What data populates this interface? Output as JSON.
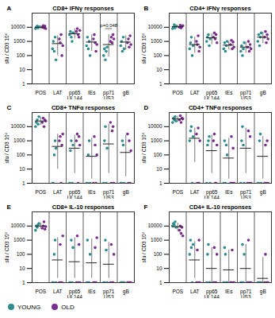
{
  "chart_data": [
    {
      "type": "scatter",
      "label": "A",
      "title": "CD8+ IFNγ responses",
      "y_label": "sfu / CD3 10⁶",
      "log": "y",
      "categories": [
        "POS",
        "LAT",
        "pp65\nUL144",
        "IEs",
        "pp71\nUS3",
        "gB"
      ],
      "ylim": [
        1,
        100000
      ],
      "yticks": [
        1,
        10,
        100,
        1000,
        10000
      ],
      "series": [
        {
          "name": "YOUNG",
          "color": "#2f8d8f",
          "values": [
            [
              8000,
              10000,
              12000,
              9000,
              11000
            ],
            [
              300,
              1000,
              200,
              2000,
              50
            ],
            [
              3000,
              5000,
              2000,
              1000,
              4000
            ],
            [
              500,
              2000,
              300,
              1000,
              100
            ],
            [
              100,
              300,
              50,
              200,
              400
            ],
            [
              500,
              1000,
              200,
              2000,
              300
            ]
          ]
        },
        {
          "name": "OLD",
          "color": "#7b2d8e",
          "values": [
            [
              10000,
              13000,
              9000,
              12000,
              8000
            ],
            [
              1500,
              800,
              3000,
              100,
              500
            ],
            [
              5000,
              8000,
              3000,
              2000,
              6000
            ],
            [
              1500,
              3000,
              800,
              200,
              600
            ],
            [
              1000,
              2000,
              800,
              3000,
              1500
            ],
            [
              800,
              1500,
              400,
              2500,
              600
            ]
          ]
        }
      ],
      "mean": [
        10000,
        700,
        3500,
        900,
        600,
        900
      ],
      "error": [
        [
          7000,
          13000
        ],
        [
          100,
          2500
        ],
        [
          1500,
          8000
        ],
        [
          200,
          3000
        ],
        [
          80,
          3000
        ],
        [
          250,
          2500
        ]
      ],
      "annotations": [
        {
          "text": "p=0.048",
          "category": "pp71\nUS3",
          "y": 8000
        }
      ]
    },
    {
      "type": "scatter",
      "label": "B",
      "title": "CD4+ IFNγ responses",
      "y_label": "sfu / CD3 10⁶",
      "log": "y",
      "categories": [
        "POS",
        "LAT",
        "pp65\nUL144",
        "IEs",
        "pp71\nUS3",
        "gB"
      ],
      "ylim": [
        1,
        100000
      ],
      "yticks": [
        1,
        10,
        100,
        1000,
        10000
      ],
      "series": [
        {
          "name": "YOUNG",
          "color": "#2f8d8f",
          "values": [
            [
              8000,
              10000,
              15000,
              9000,
              12000
            ],
            [
              300,
              800,
              2000,
              100,
              500
            ],
            [
              1000,
              2000,
              3000,
              500,
              1500
            ],
            [
              300,
              800,
              200,
              500,
              1000
            ],
            [
              200,
              500,
              100,
              300,
              800
            ],
            [
              1000,
              3000,
              500,
              2000,
              4000
            ]
          ]
        },
        {
          "name": "OLD",
          "color": "#7b2d8e",
          "values": [
            [
              10000,
              14000,
              9000,
              11000,
              13000
            ],
            [
              1000,
              600,
              2500,
              200,
              400
            ],
            [
              2000,
              4000,
              1500,
              3000,
              800
            ],
            [
              600,
              1200,
              300,
              900,
              400
            ],
            [
              400,
              1000,
              200,
              600,
              300
            ],
            [
              2000,
              5000,
              800,
              3000,
              1500
            ]
          ]
        }
      ],
      "mean": [
        11000,
        600,
        1800,
        550,
        400,
        2000
      ],
      "error": [
        [
          8000,
          14000
        ],
        [
          150,
          2000
        ],
        [
          600,
          3500
        ],
        [
          250,
          1000
        ],
        [
          150,
          900
        ],
        [
          700,
          4500
        ]
      ],
      "annotations": []
    },
    {
      "type": "scatter",
      "label": "C",
      "title": "CD8+ TNFα responses",
      "y_label": "sfu / CD3 10⁶",
      "log": "y",
      "categories": [
        "POS",
        "LAT",
        "pp65\nUL144",
        "IEs",
        "pp71\nUS3",
        "gB"
      ],
      "ylim": [
        1,
        100000
      ],
      "yticks": [
        1,
        10,
        100,
        1000,
        10000
      ],
      "series": [
        {
          "name": "YOUNG",
          "color": "#2f8d8f",
          "values": [
            [
              10000,
              20000,
              30000,
              15000,
              50000
            ],
            [
              1,
              1,
              100,
              1000,
              300
            ],
            [
              1,
              200,
              1000,
              1,
              500
            ],
            [
              1,
              1,
              100,
              1000,
              1
            ],
            [
              1,
              1000,
              10000,
              1,
              300
            ],
            [
              1,
              1,
              1000,
              500,
              1
            ]
          ]
        },
        {
          "name": "OLD",
          "color": "#7b2d8e",
          "values": [
            [
              20000,
              40000,
              10000,
              30000,
              25000
            ],
            [
              1000,
              2000,
              1,
              500,
              3000
            ],
            [
              1000,
              3000,
              1,
              2000,
              500
            ],
            [
              1,
              2000,
              500,
              1,
              100
            ],
            [
              20000,
              1,
              5000,
              10000,
              1
            ],
            [
              3000,
              1,
              1000,
              1,
              200
            ]
          ]
        }
      ],
      "mean": [
        25000,
        400,
        300,
        80,
        600,
        150
      ],
      "error": [
        [
          12000,
          45000
        ],
        [
          10,
          3000
        ],
        [
          5,
          2500
        ],
        [
          2,
          1500
        ],
        [
          5,
          15000
        ],
        [
          3,
          2500
        ]
      ],
      "annotations": []
    },
    {
      "type": "scatter",
      "label": "D",
      "title": "CD4+ TNFα responses",
      "y_label": "sfu / CD3 10⁶",
      "log": "y",
      "categories": [
        "POS",
        "LAT",
        "pp65\nUL144",
        "IEs",
        "pp71\nUS3",
        "gB"
      ],
      "ylim": [
        1,
        100000
      ],
      "yticks": [
        1,
        10,
        100,
        1000,
        10000
      ],
      "series": [
        {
          "name": "YOUNG",
          "color": "#2f8d8f",
          "values": [
            [
              20000,
              40000,
              30000,
              50000,
              25000
            ],
            [
              1000,
              5000,
              10000,
              1,
              2000
            ],
            [
              1,
              500,
              1000,
              2000,
              1
            ],
            [
              1,
              1000,
              1,
              500,
              100
            ],
            [
              1,
              1000,
              10000,
              500,
              1
            ],
            [
              1,
              1,
              1000,
              3000,
              1
            ]
          ]
        },
        {
          "name": "OLD",
          "color": "#7b2d8e",
          "values": [
            [
              30000,
              60000,
              20000,
              40000,
              35000
            ],
            [
              3000,
              1,
              8000,
              1,
              1000
            ],
            [
              1000,
              3000,
              1,
              1,
              500
            ],
            [
              1,
              2000,
              1,
              300,
              1
            ],
            [
              1,
              5000,
              1,
              2000,
              1
            ],
            [
              1,
              500,
              1,
              1000,
              1
            ]
          ]
        }
      ],
      "mean": [
        35000,
        1500,
        200,
        60,
        300,
        80
      ],
      "error": [
        [
          20000,
          55000
        ],
        [
          30,
          8000
        ],
        [
          5,
          2500
        ],
        [
          2,
          1500
        ],
        [
          5,
          8000
        ],
        [
          2,
          2000
        ]
      ],
      "annotations": []
    },
    {
      "type": "scatter",
      "label": "E",
      "title": "CD8+ IL-10 responses",
      "y_label": "sfu / CD3 10⁶",
      "log": "y",
      "categories": [
        "POS",
        "LAT",
        "pp65\nUL144",
        "IEs",
        "pp71\nUS3",
        "gB"
      ],
      "ylim": [
        1,
        100000
      ],
      "yticks": [
        1,
        10,
        100,
        1000,
        10000
      ],
      "series": [
        {
          "name": "YOUNG",
          "color": "#2f8d8f",
          "values": [
            [
              5000,
              10000,
              8000,
              12000,
              15000
            ],
            [
              1,
              1,
              100,
              1000,
              1
            ],
            [
              1,
              1,
              1000,
              1,
              300
            ],
            [
              1,
              1000,
              1,
              1,
              100
            ],
            [
              1,
              1,
              1000,
              200,
              1
            ],
            [
              1,
              1,
              1,
              1,
              1
            ]
          ]
        },
        {
          "name": "OLD",
          "color": "#7b2d8e",
          "values": [
            [
              7000,
              10000,
              20000,
              6000,
              9000
            ],
            [
              1,
              500,
              1,
              1,
              2000
            ],
            [
              1,
              2000,
              1,
              500,
              1
            ],
            [
              1,
              1,
              300,
              1,
              1500
            ],
            [
              1,
              500,
              1,
              1,
              100
            ],
            [
              1,
              1,
              1,
              1,
              1
            ]
          ]
        }
      ],
      "mean": [
        10000,
        40,
        30,
        25,
        20,
        1
      ],
      "error": [
        [
          6000,
          16000
        ],
        [
          2,
          1500
        ],
        [
          2,
          1500
        ],
        [
          2,
          1200
        ],
        [
          2,
          700
        ],
        [
          1,
          1
        ]
      ],
      "annotations": []
    },
    {
      "type": "scatter",
      "label": "F",
      "title": "CD4+ IL-10 responses",
      "y_label": "sfu / CD3 10⁶",
      "log": "y",
      "categories": [
        "POS",
        "LAT",
        "pp65\nUL144",
        "IEs",
        "pp71\nUS3",
        "gB"
      ],
      "ylim": [
        1,
        100000
      ],
      "yticks": [
        1,
        10,
        100,
        1000,
        10000
      ],
      "series": [
        {
          "name": "YOUNG",
          "color": "#2f8d8f",
          "values": [
            [
              10000,
              15000,
              12000,
              20000,
              8000
            ],
            [
              100,
              1000,
              300,
              1,
              500
            ],
            [
              1,
              100,
              500,
              1,
              1
            ],
            [
              1,
              300,
              100,
              1,
              1
            ],
            [
              1,
              1,
              500,
              1,
              100
            ],
            [
              1,
              1,
              1,
              1,
              1
            ]
          ]
        },
        {
          "name": "OLD",
          "color": "#7b2d8e",
          "values": [
            [
              5000,
              10000,
              3000,
              8000,
              2000
            ],
            [
              1,
              200,
              1,
              1000,
              1
            ],
            [
              1,
              300,
              1,
              1,
              100
            ],
            [
              1,
              1,
              200,
              1,
              1
            ],
            [
              1,
              1000,
              1,
              1,
              1
            ],
            [
              1,
              100,
              1,
              1,
              1
            ]
          ]
        }
      ],
      "mean": [
        9000,
        40,
        10,
        8,
        10,
        2
      ],
      "error": [
        [
          4000,
          16000
        ],
        [
          2,
          800
        ],
        [
          1,
          300
        ],
        [
          1,
          200
        ],
        [
          1,
          500
        ],
        [
          1,
          60
        ]
      ],
      "annotations": []
    }
  ]
}
